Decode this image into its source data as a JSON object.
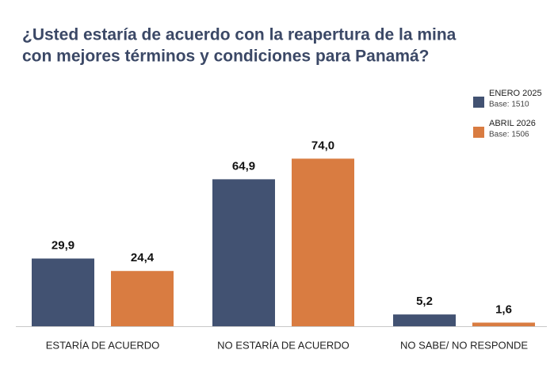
{
  "chart_data": {
    "type": "bar",
    "title": [
      "¿Usted estaría de acuerdo con la reapertura de la mina",
      "con mejores términos y condiciones para Panamá?"
    ],
    "categories": [
      "ESTARÍA DE ACUERDO",
      "NO ESTARÍA DE ACUERDO",
      "NO SABE/ NO RESPONDE"
    ],
    "series": [
      {
        "name": "ENERO 2025",
        "base": "Base: 1510",
        "color": "#425272",
        "values": [
          29.9,
          64.9,
          5.2
        ],
        "value_labels": [
          "29,9",
          "64,9",
          "5,2"
        ]
      },
      {
        "name": "ABRIL 2026",
        "base": "Base: 1506",
        "color": "#d97c41",
        "values": [
          24.4,
          74.0,
          1.6
        ],
        "value_labels": [
          "24,4",
          "74,0",
          "1,6"
        ]
      }
    ],
    "ylim": [
      0,
      100
    ],
    "legend": "top-right"
  }
}
